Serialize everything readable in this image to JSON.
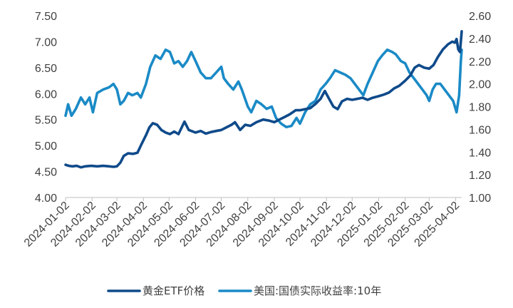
{
  "chart_data": {
    "type": "line",
    "x_tick_labels": [
      "2024-01-02",
      "2024-02-02",
      "2024-03-02",
      "2024-04-02",
      "2024-05-02",
      "2024-06-02",
      "2024-07-02",
      "2024-08-02",
      "2024-09-02",
      "2024-10-02",
      "2024-11-02",
      "2024-12-02",
      "2025-01-02",
      "2025-02-02",
      "2025-03-02",
      "2025-04-02"
    ],
    "y_left_ticks": [
      "4.00",
      "4.50",
      "5.00",
      "5.50",
      "6.00",
      "6.50",
      "7.00",
      "7.50"
    ],
    "y_right_ticks": [
      "1.00",
      "1.20",
      "1.40",
      "1.60",
      "1.80",
      "2.00",
      "2.20",
      "2.40",
      "2.60"
    ],
    "y_left_lim": [
      4.0,
      7.5
    ],
    "y_right_lim": [
      1.0,
      2.6
    ],
    "x_range": [
      "2024-01-02",
      "2025-04-09"
    ],
    "legend_position": "bottom",
    "grid": false,
    "series": [
      {
        "name": "黄金ETF价格",
        "axis": "left",
        "color": "#0f4a8a",
        "points": [
          [
            "2024-01-02",
            4.63
          ],
          [
            "2024-01-06",
            4.61
          ],
          [
            "2024-01-10",
            4.6
          ],
          [
            "2024-01-15",
            4.61
          ],
          [
            "2024-01-20",
            4.58
          ],
          [
            "2024-01-25",
            4.6
          ],
          [
            "2024-02-01",
            4.61
          ],
          [
            "2024-02-08",
            4.6
          ],
          [
            "2024-02-15",
            4.61
          ],
          [
            "2024-02-22",
            4.6
          ],
          [
            "2024-02-27",
            4.59
          ],
          [
            "2024-03-02",
            4.6
          ],
          [
            "2024-03-06",
            4.67
          ],
          [
            "2024-03-10",
            4.8
          ],
          [
            "2024-03-15",
            4.85
          ],
          [
            "2024-03-21",
            4.84
          ],
          [
            "2024-03-26",
            4.86
          ],
          [
            "2024-03-30",
            5.0
          ],
          [
            "2024-04-05",
            5.2
          ],
          [
            "2024-04-09",
            5.35
          ],
          [
            "2024-04-13",
            5.43
          ],
          [
            "2024-04-18",
            5.4
          ],
          [
            "2024-04-23",
            5.3
          ],
          [
            "2024-04-28",
            5.25
          ],
          [
            "2024-05-03",
            5.22
          ],
          [
            "2024-05-08",
            5.27
          ],
          [
            "2024-05-13",
            5.22
          ],
          [
            "2024-05-20",
            5.46
          ],
          [
            "2024-05-25",
            5.3
          ],
          [
            "2024-06-02",
            5.25
          ],
          [
            "2024-06-08",
            5.28
          ],
          [
            "2024-06-14",
            5.23
          ],
          [
            "2024-06-20",
            5.26
          ],
          [
            "2024-06-26",
            5.28
          ],
          [
            "2024-07-02",
            5.3
          ],
          [
            "2024-07-08",
            5.35
          ],
          [
            "2024-07-14",
            5.4
          ],
          [
            "2024-07-18",
            5.45
          ],
          [
            "2024-07-24",
            5.3
          ],
          [
            "2024-07-30",
            5.4
          ],
          [
            "2024-08-05",
            5.38
          ],
          [
            "2024-08-12",
            5.45
          ],
          [
            "2024-08-20",
            5.5
          ],
          [
            "2024-08-27",
            5.48
          ],
          [
            "2024-09-02",
            5.45
          ],
          [
            "2024-09-08",
            5.5
          ],
          [
            "2024-09-14",
            5.55
          ],
          [
            "2024-09-20",
            5.6
          ],
          [
            "2024-09-27",
            5.68
          ],
          [
            "2024-10-02",
            5.68
          ],
          [
            "2024-10-08",
            5.7
          ],
          [
            "2024-10-14",
            5.72
          ],
          [
            "2024-10-20",
            5.8
          ],
          [
            "2024-10-26",
            5.9
          ],
          [
            "2024-10-31",
            6.05
          ],
          [
            "2024-11-05",
            5.9
          ],
          [
            "2024-11-10",
            5.75
          ],
          [
            "2024-11-15",
            5.7
          ],
          [
            "2024-11-20",
            5.85
          ],
          [
            "2024-11-26",
            5.9
          ],
          [
            "2024-12-02",
            5.88
          ],
          [
            "2024-12-08",
            5.9
          ],
          [
            "2024-12-14",
            5.92
          ],
          [
            "2024-12-20",
            5.88
          ],
          [
            "2024-12-26",
            5.92
          ],
          [
            "2025-01-02",
            5.95
          ],
          [
            "2025-01-08",
            5.98
          ],
          [
            "2025-01-14",
            6.02
          ],
          [
            "2025-01-20",
            6.1
          ],
          [
            "2025-01-26",
            6.15
          ],
          [
            "2025-02-02",
            6.25
          ],
          [
            "2025-02-08",
            6.35
          ],
          [
            "2025-02-13",
            6.5
          ],
          [
            "2025-02-18",
            6.55
          ],
          [
            "2025-02-24",
            6.5
          ],
          [
            "2025-03-02",
            6.48
          ],
          [
            "2025-03-07",
            6.55
          ],
          [
            "2025-03-12",
            6.7
          ],
          [
            "2025-03-18",
            6.85
          ],
          [
            "2025-03-24",
            6.95
          ],
          [
            "2025-03-29",
            7.0
          ],
          [
            "2025-04-01",
            6.98
          ],
          [
            "2025-04-03",
            7.05
          ],
          [
            "2025-04-05",
            6.85
          ],
          [
            "2025-04-07",
            6.8
          ],
          [
            "2025-04-09",
            7.2
          ]
        ]
      },
      {
        "name": "美国:国债实际收益率:10年",
        "axis": "right",
        "color": "#1a8ac6",
        "points": [
          [
            "2024-01-02",
            1.72
          ],
          [
            "2024-01-05",
            1.82
          ],
          [
            "2024-01-09",
            1.72
          ],
          [
            "2024-01-14",
            1.78
          ],
          [
            "2024-01-20",
            1.88
          ],
          [
            "2024-01-25",
            1.82
          ],
          [
            "2024-01-30",
            1.88
          ],
          [
            "2024-02-03",
            1.75
          ],
          [
            "2024-02-08",
            1.92
          ],
          [
            "2024-02-15",
            1.95
          ],
          [
            "2024-02-22",
            1.97
          ],
          [
            "2024-02-27",
            2.0
          ],
          [
            "2024-03-02",
            1.95
          ],
          [
            "2024-03-06",
            1.82
          ],
          [
            "2024-03-10",
            1.85
          ],
          [
            "2024-03-15",
            1.92
          ],
          [
            "2024-03-20",
            1.9
          ],
          [
            "2024-03-26",
            1.92
          ],
          [
            "2024-03-30",
            1.88
          ],
          [
            "2024-04-05",
            2.0
          ],
          [
            "2024-04-10",
            2.15
          ],
          [
            "2024-04-16",
            2.25
          ],
          [
            "2024-04-22",
            2.22
          ],
          [
            "2024-04-28",
            2.3
          ],
          [
            "2024-05-03",
            2.28
          ],
          [
            "2024-05-08",
            2.18
          ],
          [
            "2024-05-13",
            2.2
          ],
          [
            "2024-05-18",
            2.15
          ],
          [
            "2024-05-23",
            2.2
          ],
          [
            "2024-05-28",
            2.28
          ],
          [
            "2024-06-02",
            2.2
          ],
          [
            "2024-06-08",
            2.1
          ],
          [
            "2024-06-14",
            2.05
          ],
          [
            "2024-06-20",
            2.05
          ],
          [
            "2024-06-26",
            2.1
          ],
          [
            "2024-07-02",
            2.15
          ],
          [
            "2024-07-05",
            2.05
          ],
          [
            "2024-07-10",
            2.0
          ],
          [
            "2024-07-16",
            1.95
          ],
          [
            "2024-07-22",
            2.02
          ],
          [
            "2024-07-26",
            1.95
          ],
          [
            "2024-08-02",
            1.8
          ],
          [
            "2024-08-06",
            1.75
          ],
          [
            "2024-08-12",
            1.85
          ],
          [
            "2024-08-18",
            1.82
          ],
          [
            "2024-08-24",
            1.78
          ],
          [
            "2024-08-30",
            1.8
          ],
          [
            "2024-09-04",
            1.7
          ],
          [
            "2024-09-10",
            1.65
          ],
          [
            "2024-09-16",
            1.62
          ],
          [
            "2024-09-22",
            1.63
          ],
          [
            "2024-09-28",
            1.7
          ],
          [
            "2024-10-02",
            1.65
          ],
          [
            "2024-10-08",
            1.75
          ],
          [
            "2024-10-14",
            1.82
          ],
          [
            "2024-10-20",
            1.85
          ],
          [
            "2024-10-26",
            1.95
          ],
          [
            "2024-11-01",
            2.0
          ],
          [
            "2024-11-06",
            2.05
          ],
          [
            "2024-11-12",
            2.12
          ],
          [
            "2024-11-18",
            2.1
          ],
          [
            "2024-11-24",
            2.08
          ],
          [
            "2024-11-30",
            2.05
          ],
          [
            "2024-12-05",
            2.0
          ],
          [
            "2024-12-10",
            1.95
          ],
          [
            "2024-12-15",
            1.9
          ],
          [
            "2024-12-20",
            2.0
          ],
          [
            "2024-12-26",
            2.1
          ],
          [
            "2025-01-01",
            2.2
          ],
          [
            "2025-01-06",
            2.25
          ],
          [
            "2025-01-12",
            2.3
          ],
          [
            "2025-01-18",
            2.28
          ],
          [
            "2025-01-22",
            2.26
          ],
          [
            "2025-01-28",
            2.2
          ],
          [
            "2025-02-02",
            2.18
          ],
          [
            "2025-02-07",
            2.1
          ],
          [
            "2025-02-12",
            2.05
          ],
          [
            "2025-02-17",
            2.0
          ],
          [
            "2025-02-22",
            1.95
          ],
          [
            "2025-02-27",
            1.9
          ],
          [
            "2025-03-02",
            1.85
          ],
          [
            "2025-03-06",
            1.95
          ],
          [
            "2025-03-10",
            2.0
          ],
          [
            "2025-03-15",
            2.0
          ],
          [
            "2025-03-20",
            1.95
          ],
          [
            "2025-03-25",
            1.9
          ],
          [
            "2025-03-30",
            1.85
          ],
          [
            "2025-04-03",
            1.75
          ],
          [
            "2025-04-06",
            1.9
          ],
          [
            "2025-04-08",
            2.2
          ],
          [
            "2025-04-09",
            2.3
          ]
        ]
      }
    ]
  }
}
